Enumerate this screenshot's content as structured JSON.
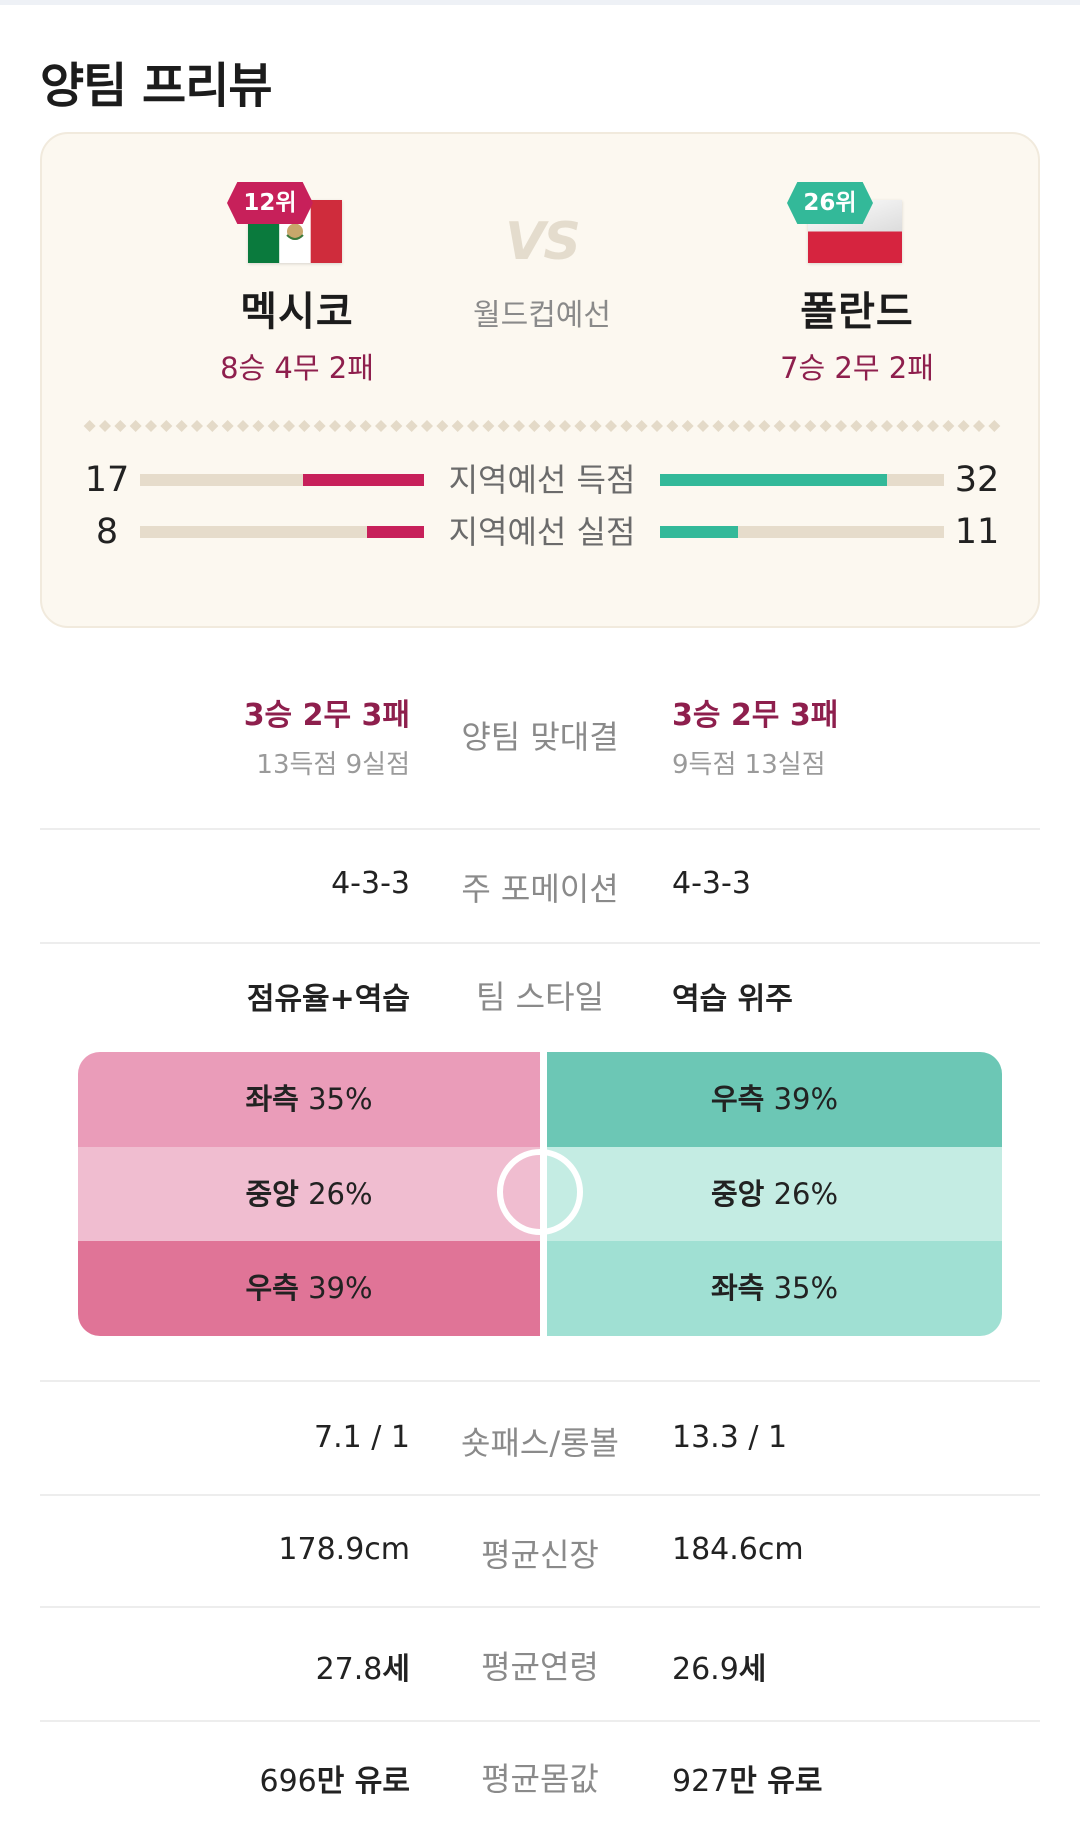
{
  "page_title": "양팀 프리뷰",
  "match": {
    "vs": "VS",
    "competition": "월드컵예선",
    "home": {
      "rank": "12위",
      "name": "멕시코",
      "record": "8승 4무 2패",
      "flag": "mexico-flag-icon"
    },
    "away": {
      "rank": "26위",
      "name": "폴란드",
      "record": "7승 2무 2패",
      "flag": "poland-flag-icon"
    }
  },
  "regional": [
    {
      "label": "지역예선 득점",
      "home": "17",
      "away": "32",
      "home_value": 17,
      "away_value": 32,
      "max": 40
    },
    {
      "label": "지역예선 실점",
      "home": "8",
      "away": "11",
      "home_value": 8,
      "away_value": 11,
      "max": 40
    }
  ],
  "head_to_head": {
    "label": "양팀 맞대결",
    "home_record": "3승 2무 3패",
    "home_goals": "13득점 9실점",
    "away_record": "3승 2무 3패",
    "away_goals": "9득점 13실점"
  },
  "formation": {
    "label": "주 포메이션",
    "home": "4-3-3",
    "away": "4-3-3"
  },
  "style": {
    "label": "팀 스타일",
    "home": "점유율+역습",
    "away": "역습 위주"
  },
  "attack_zones": {
    "home": [
      {
        "side": "좌측",
        "pct": "35%"
      },
      {
        "side": "중앙",
        "pct": "26%"
      },
      {
        "side": "우측",
        "pct": "39%"
      }
    ],
    "away": [
      {
        "side": "우측",
        "pct": "39%"
      },
      {
        "side": "중앙",
        "pct": "26%"
      },
      {
        "side": "좌측",
        "pct": "35%"
      }
    ],
    "colors": {
      "home": [
        "#ea9cb9",
        "#f0bdd0",
        "#e07497"
      ],
      "away": [
        "#6cc7b5",
        "#c4ece3",
        "#a0e0d3"
      ]
    }
  },
  "stats": [
    {
      "label": "숏패스/롱볼",
      "home": "7.1 / 1",
      "away": "13.3 / 1"
    },
    {
      "label": "평균신장",
      "home": "178.9cm",
      "away": "184.6cm"
    },
    {
      "label": "평균연령",
      "home_num": "27.8",
      "home_unit": "세",
      "away_num": "26.9",
      "away_unit": "세"
    },
    {
      "label": "평균몸값",
      "home_num": "696",
      "home_unit": "만 유로",
      "away_num": "927",
      "away_unit": "만 유로"
    }
  ],
  "accent": {
    "home": "#c7205a",
    "away": "#33b999",
    "record": "#8e1f4d"
  }
}
